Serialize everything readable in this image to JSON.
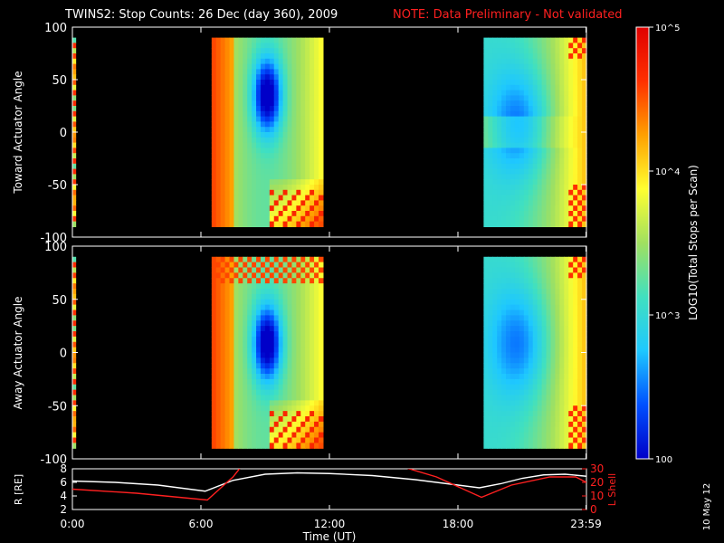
{
  "header": {
    "title": "TWINS2: Stop Counts: 26 Dec (day 360), 2009",
    "note": "NOTE: Data Preliminary - Not validated",
    "note_color": "#ff2020"
  },
  "side_stamp": "10 May 12",
  "colorbar": {
    "label": "LOG10(Total Stops per Scan)",
    "ticks": [
      "10^5",
      "10^4",
      "10^3",
      "100"
    ],
    "tick_values": [
      100000,
      10000,
      1000,
      100
    ],
    "range": [
      100,
      100000
    ],
    "scale": "log",
    "colors": [
      "#0000c8",
      "#0050ff",
      "#1ec8ff",
      "#40e0c0",
      "#a0e060",
      "#ffff30",
      "#ffa000",
      "#ff3000",
      "#e00000"
    ]
  },
  "chart_data": [
    {
      "type": "heatmap",
      "name": "toward",
      "ylabel": "Toward Actuator Angle",
      "ylim": [
        -100,
        100
      ],
      "yticks": [
        "100",
        "50",
        "0",
        "-50",
        "-100"
      ],
      "ytick_values": [
        100,
        50,
        0,
        -50,
        -100
      ],
      "xlim": [
        0,
        24
      ],
      "data_blocks": [
        {
          "t_start": 0,
          "t_end": 0.15,
          "angle_range": [
            -90,
            90
          ],
          "level": "mixed 10^3-10^5"
        },
        {
          "t_start": 6.5,
          "t_end": 11.7,
          "angle_range": [
            -90,
            90
          ],
          "level": "10^2-10^5"
        },
        {
          "t_start": 19.2,
          "t_end": 24,
          "angle_range": [
            -90,
            90
          ],
          "level": "10^2-10^5"
        }
      ]
    },
    {
      "type": "heatmap",
      "name": "away",
      "ylabel": "Away Actuator Angle",
      "ylim": [
        -100,
        100
      ],
      "yticks": [
        "100",
        "50",
        "0",
        "-50",
        "-100"
      ],
      "ytick_values": [
        100,
        50,
        0,
        -50,
        -100
      ],
      "xlim": [
        0,
        24
      ],
      "data_blocks": [
        {
          "t_start": 0,
          "t_end": 0.15,
          "angle_range": [
            -90,
            90
          ],
          "level": "mixed 10^3-10^4"
        },
        {
          "t_start": 6.5,
          "t_end": 11.7,
          "angle_range": [
            -90,
            90
          ],
          "level": "10^2-10^5"
        },
        {
          "t_start": 19.2,
          "t_end": 24,
          "angle_range": [
            -90,
            90
          ],
          "level": "10^2-10^5"
        }
      ]
    },
    {
      "type": "line",
      "name": "orbit",
      "xlabel": "Time (UT)",
      "ylabel": "R [RE]",
      "ylim": [
        2,
        8
      ],
      "yticks": [
        "8",
        "6",
        "4",
        "2"
      ],
      "ytick_values": [
        8,
        6,
        4,
        2
      ],
      "y2label": "L Shell",
      "y2lim": [
        0,
        30
      ],
      "y2ticks": [
        "30",
        "20",
        "10",
        "0"
      ],
      "y2tick_values": [
        30,
        20,
        10,
        0
      ],
      "xticks": [
        "0:00",
        "6:00",
        "12:00",
        "18:00",
        "23:59"
      ],
      "xtick_values": [
        0,
        6,
        12,
        18,
        23.98
      ],
      "series": [
        {
          "name": "R",
          "color": "#ffffff",
          "axis": "left",
          "x": [
            0,
            2,
            4,
            6.2,
            7.5,
            9,
            10.5,
            12,
            14,
            16,
            18,
            19,
            20,
            21,
            22,
            23,
            24
          ],
          "y": [
            6.2,
            6.0,
            5.6,
            4.7,
            6.3,
            7.2,
            7.4,
            7.3,
            7.0,
            6.4,
            5.6,
            5.2,
            5.8,
            6.6,
            7.1,
            7.2,
            6.9
          ]
        },
        {
          "name": "L Shell",
          "color": "#ff2020",
          "axis": "right",
          "x": [
            0,
            3,
            6.3,
            7.5,
            7.9
          ],
          "y": [
            15,
            12,
            7,
            24,
            32
          ]
        },
        {
          "name": "L Shell",
          "color": "#ff2020",
          "axis": "right",
          "x": [
            15.3,
            17,
            19.1,
            20.5,
            22.3,
            23.5,
            24
          ],
          "y": [
            32,
            24,
            9,
            18,
            24,
            24,
            20
          ]
        }
      ]
    }
  ]
}
